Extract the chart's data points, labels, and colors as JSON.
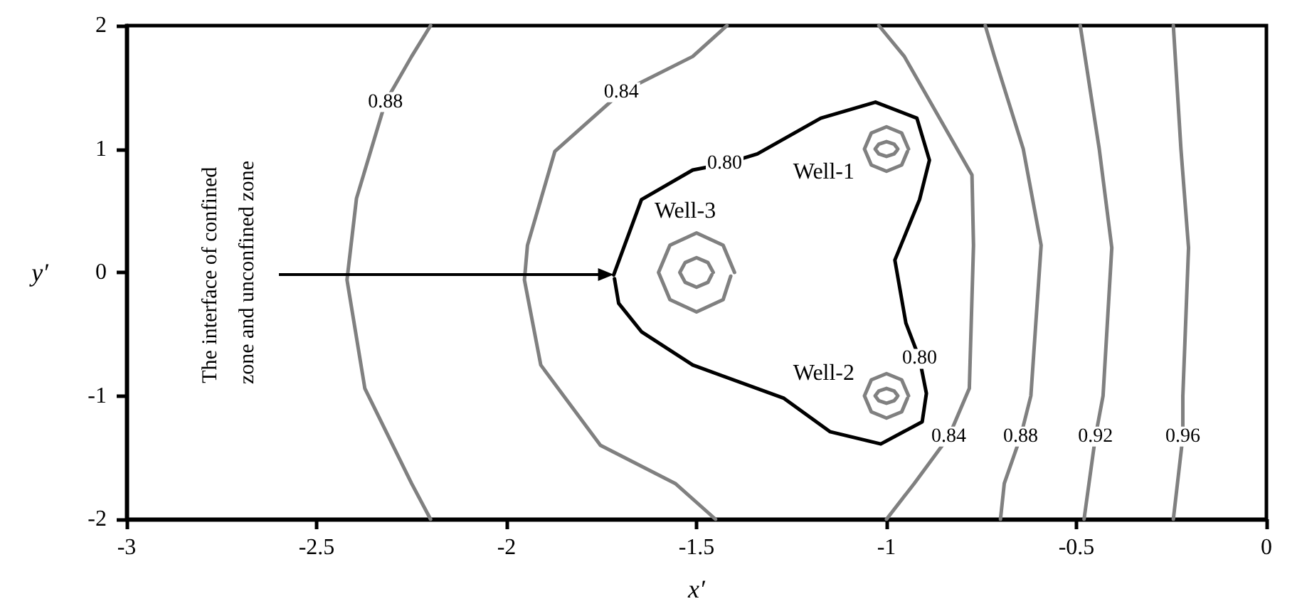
{
  "chart_data": {
    "type": "line",
    "xlabel": "x′",
    "ylabel": "y′",
    "xlim": [
      -3,
      0
    ],
    "ylim": [
      -2,
      2
    ],
    "xticks": [
      -3,
      -2.5,
      -2,
      -1.5,
      -1,
      -0.5,
      0
    ],
    "yticks": [
      -2,
      -1,
      0,
      1,
      2
    ],
    "grid": false,
    "marker": "none",
    "line_style": "solid",
    "series": [
      {
        "color": "#000000",
        "x": [
          -1.718,
          -1.645,
          -1.51,
          -1.426,
          -1.34,
          -1.173,
          -1.029,
          -0.92,
          -0.887,
          -0.913,
          -0.978,
          -0.949,
          -0.913,
          -0.895,
          -0.906,
          -1.015,
          -1.149,
          -1.27,
          -1.51,
          -1.645,
          -1.705,
          -1.716
        ],
        "values": [
          -0.02,
          0.59,
          0.83,
          0.88,
          0.96,
          1.25,
          1.38,
          1.25,
          0.91,
          0.59,
          0.1,
          -0.41,
          -0.7,
          -0.98,
          -1.21,
          -1.39,
          -1.29,
          -1.02,
          -0.75,
          -0.48,
          -0.25,
          -0.05
        ]
      },
      {
        "color": "#808080",
        "x": [
          -1.42,
          -1.51,
          -1.698,
          -1.873,
          -1.945,
          -1.953,
          -1.91,
          -1.753,
          -1.556,
          -1.45,
          null,
          -1.0,
          -0.927,
          -0.836,
          -0.782,
          -0.771,
          -0.775,
          -0.953,
          -1.02
        ],
        "values": [
          2,
          1.75,
          1.46,
          0.98,
          0.22,
          -0.06,
          -0.75,
          -1.4,
          -1.71,
          -2,
          null,
          -2,
          -1.71,
          -1.33,
          -0.94,
          0.22,
          0.79,
          1.75,
          2
        ]
      },
      {
        "color": "#808080",
        "x": [
          -2.2,
          -2.25,
          -2.319,
          -2.395,
          -2.42,
          -2.373,
          -2.25,
          -2.2,
          null,
          -0.7,
          -0.69,
          -0.647,
          -0.62,
          -0.593,
          -0.64,
          -0.716,
          -0.74
        ],
        "values": [
          2,
          1.75,
          1.38,
          0.6,
          -0.06,
          -0.94,
          -1.71,
          -2,
          null,
          -2,
          -1.71,
          -1.33,
          -1,
          0.22,
          1,
          1.75,
          2
        ]
      },
      {
        "color": "#808080",
        "x": [
          -0.48,
          -0.45,
          -0.43,
          -0.407,
          -0.44,
          -0.49
        ],
        "values": [
          -2,
          -1.33,
          -1,
          0.2,
          1,
          2
        ]
      },
      {
        "color": "#808080",
        "x": [
          -0.245,
          -0.22,
          -0.22,
          -0.205,
          -0.225,
          -0.245
        ],
        "values": [
          -2,
          -1.33,
          -1,
          0.2,
          1,
          2
        ]
      },
      {
        "name": "Well-3",
        "color": "#808080",
        "x": [
          -1.4,
          -1.43,
          -1.5,
          -1.57,
          -1.6,
          -1.57,
          -1.5,
          -1.43,
          -1.41
        ],
        "values": [
          0,
          0.22,
          0.32,
          0.22,
          0,
          -0.22,
          -0.32,
          -0.22,
          -0.03
        ]
      },
      {
        "color": "#808080",
        "x": [
          -1.456,
          -1.47,
          -1.5,
          -1.53,
          -1.544,
          -1.53,
          -1.5,
          -1.47,
          -1.46
        ],
        "values": [
          0,
          0.08,
          0.12,
          0.08,
          0,
          -0.08,
          -0.12,
          -0.08,
          -0.02
        ]
      },
      {
        "name": "Well-1",
        "color": "#808080",
        "x": [
          -0.942,
          -0.96,
          -1,
          -1.04,
          -1.058,
          -1.04,
          -1,
          -0.96,
          -0.945
        ],
        "values": [
          1,
          1.13,
          1.18,
          1.13,
          1,
          0.87,
          0.82,
          0.87,
          0.98
        ]
      },
      {
        "color": "#808080",
        "x": [
          -0.97,
          -0.98,
          -1,
          -1.02,
          -1.03,
          -1.02,
          -1,
          -0.98,
          -0.972
        ],
        "values": [
          1,
          1.04,
          1.06,
          1.04,
          1,
          0.96,
          0.94,
          0.96,
          0.99
        ]
      },
      {
        "name": "Well-2",
        "color": "#808080",
        "x": [
          -0.942,
          -0.96,
          -1,
          -1.04,
          -1.058,
          -1.04,
          -1,
          -0.96,
          -0.945
        ],
        "values": [
          -1,
          -0.87,
          -0.82,
          -0.87,
          -1,
          -1.13,
          -1.18,
          -1.13,
          -1.02
        ]
      },
      {
        "color": "#808080",
        "x": [
          -0.97,
          -0.98,
          -1,
          -1.02,
          -1.03,
          -1.02,
          -1,
          -0.98,
          -0.972
        ],
        "values": [
          -1,
          -0.96,
          -0.94,
          -0.96,
          -1,
          -1.04,
          -1.06,
          -1.04,
          -1.01
        ]
      }
    ],
    "annotations": [
      {
        "text": "0.80",
        "x": -1.426,
        "y": 0.88
      },
      {
        "text": "0.80",
        "x": -0.913,
        "y": -0.7
      },
      {
        "text": "0.84",
        "x": -1.698,
        "y": 1.46
      },
      {
        "text": "0.84",
        "x": -0.836,
        "y": -1.33
      },
      {
        "text": "0.88",
        "x": -2.319,
        "y": 1.38
      },
      {
        "text": "0.88",
        "x": -0.647,
        "y": -1.33
      },
      {
        "text": "0.92",
        "x": -0.45,
        "y": -1.33
      },
      {
        "text": "0.96",
        "x": -0.22,
        "y": -1.33
      },
      "The interface of confined zone and unconfined zone"
    ]
  }
}
